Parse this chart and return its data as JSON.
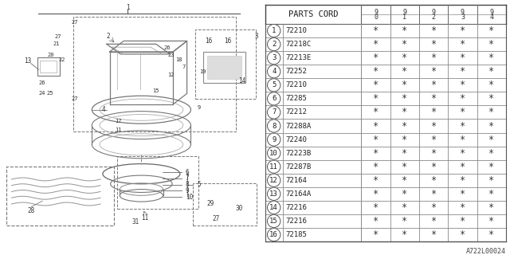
{
  "bg_color": "#ffffff",
  "parts_cord_header": "PARTS CORD",
  "year_cols": [
    "9/0",
    "9/1",
    "9/2",
    "9/3",
    "9/4"
  ],
  "rows": [
    [
      1,
      "72210"
    ],
    [
      2,
      "72218C"
    ],
    [
      3,
      "72213E"
    ],
    [
      4,
      "72252"
    ],
    [
      5,
      "72210"
    ],
    [
      6,
      "72285"
    ],
    [
      7,
      "72212"
    ],
    [
      8,
      "72288A"
    ],
    [
      9,
      "72240"
    ],
    [
      10,
      "72223B"
    ],
    [
      11,
      "72287B"
    ],
    [
      12,
      "72164"
    ],
    [
      13,
      "72164A"
    ],
    [
      14,
      "72216"
    ],
    [
      15,
      "72216"
    ],
    [
      16,
      "72185"
    ]
  ],
  "watermark": "A722L00024",
  "font_size_table": 6.5
}
